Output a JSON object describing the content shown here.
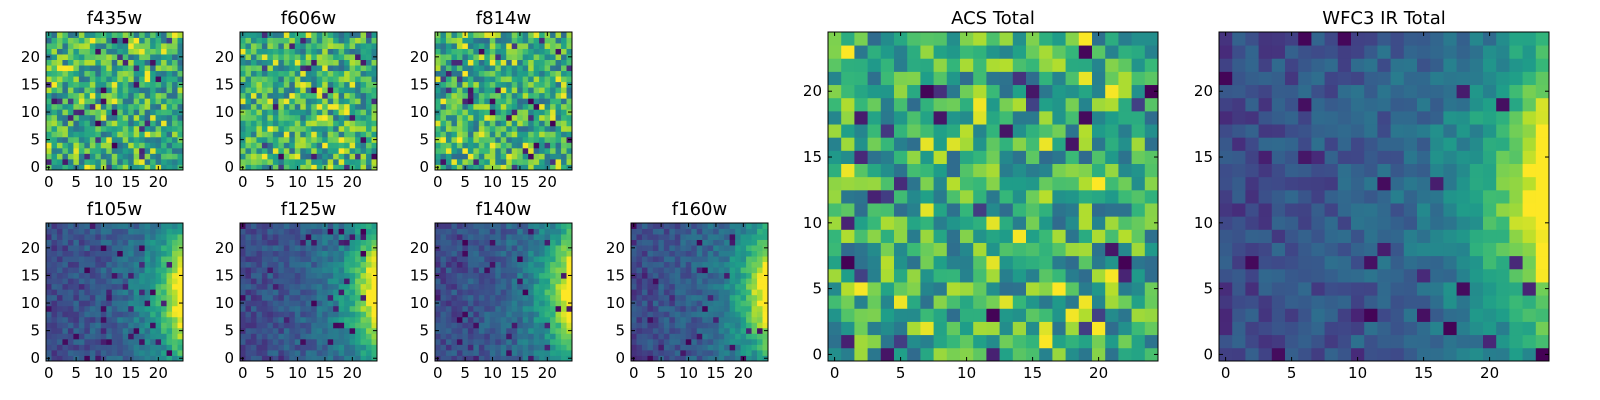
{
  "chart_data": [
    {
      "type": "heatmap",
      "title": "f435w",
      "grid_size": 25,
      "colormap": "viridis",
      "pattern": "noise",
      "xticks": [
        0,
        5,
        10,
        15,
        20
      ],
      "yticks": [
        0,
        5,
        10,
        15,
        20
      ],
      "xlim": [
        -0.5,
        24.5
      ],
      "ylim": [
        -0.5,
        24.5
      ]
    },
    {
      "type": "heatmap",
      "title": "f606w",
      "grid_size": 25,
      "colormap": "viridis",
      "pattern": "noise",
      "xticks": [
        0,
        5,
        10,
        15,
        20
      ],
      "yticks": [
        0,
        5,
        10,
        15,
        20
      ],
      "xlim": [
        -0.5,
        24.5
      ],
      "ylim": [
        -0.5,
        24.5
      ]
    },
    {
      "type": "heatmap",
      "title": "f814w",
      "grid_size": 25,
      "colormap": "viridis",
      "pattern": "noise",
      "xticks": [
        0,
        5,
        10,
        15,
        20
      ],
      "yticks": [
        0,
        5,
        10,
        15,
        20
      ],
      "xlim": [
        -0.5,
        24.5
      ],
      "ylim": [
        -0.5,
        24.5
      ]
    },
    {
      "type": "heatmap",
      "title": "f105w",
      "grid_size": 25,
      "colormap": "viridis",
      "pattern": "gradient-right",
      "xticks": [
        0,
        5,
        10,
        15,
        20
      ],
      "yticks": [
        0,
        5,
        10,
        15,
        20
      ],
      "xlim": [
        -0.5,
        24.5
      ],
      "ylim": [
        -0.5,
        24.5
      ]
    },
    {
      "type": "heatmap",
      "title": "f125w",
      "grid_size": 25,
      "colormap": "viridis",
      "pattern": "gradient-right",
      "xticks": [
        0,
        5,
        10,
        15,
        20
      ],
      "yticks": [
        0,
        5,
        10,
        15,
        20
      ],
      "xlim": [
        -0.5,
        24.5
      ],
      "ylim": [
        -0.5,
        24.5
      ]
    },
    {
      "type": "heatmap",
      "title": "f140w",
      "grid_size": 25,
      "colormap": "viridis",
      "pattern": "gradient-right",
      "xticks": [
        0,
        5,
        10,
        15,
        20
      ],
      "yticks": [
        0,
        5,
        10,
        15,
        20
      ],
      "xlim": [
        -0.5,
        24.5
      ],
      "ylim": [
        -0.5,
        24.5
      ]
    },
    {
      "type": "heatmap",
      "title": "f160w",
      "grid_size": 25,
      "colormap": "viridis",
      "pattern": "gradient-right",
      "xticks": [
        0,
        5,
        10,
        15,
        20
      ],
      "yticks": [
        0,
        5,
        10,
        15,
        20
      ],
      "xlim": [
        -0.5,
        24.5
      ],
      "ylim": [
        -0.5,
        24.5
      ]
    },
    {
      "type": "heatmap",
      "title": "ACS Total",
      "grid_size": 25,
      "colormap": "viridis",
      "pattern": "noise",
      "xticks": [
        0,
        5,
        10,
        15,
        20
      ],
      "yticks": [
        0,
        5,
        10,
        15,
        20
      ],
      "xlim": [
        -0.5,
        24.5
      ],
      "ylim": [
        -0.5,
        24.5
      ]
    },
    {
      "type": "heatmap",
      "title": "WFC3 IR Total",
      "grid_size": 25,
      "colormap": "viridis",
      "pattern": "gradient-right",
      "xticks": [
        0,
        5,
        10,
        15,
        20
      ],
      "yticks": [
        0,
        5,
        10,
        15,
        20
      ],
      "xlim": [
        -0.5,
        24.5
      ],
      "ylim": [
        -0.5,
        24.5
      ]
    }
  ]
}
